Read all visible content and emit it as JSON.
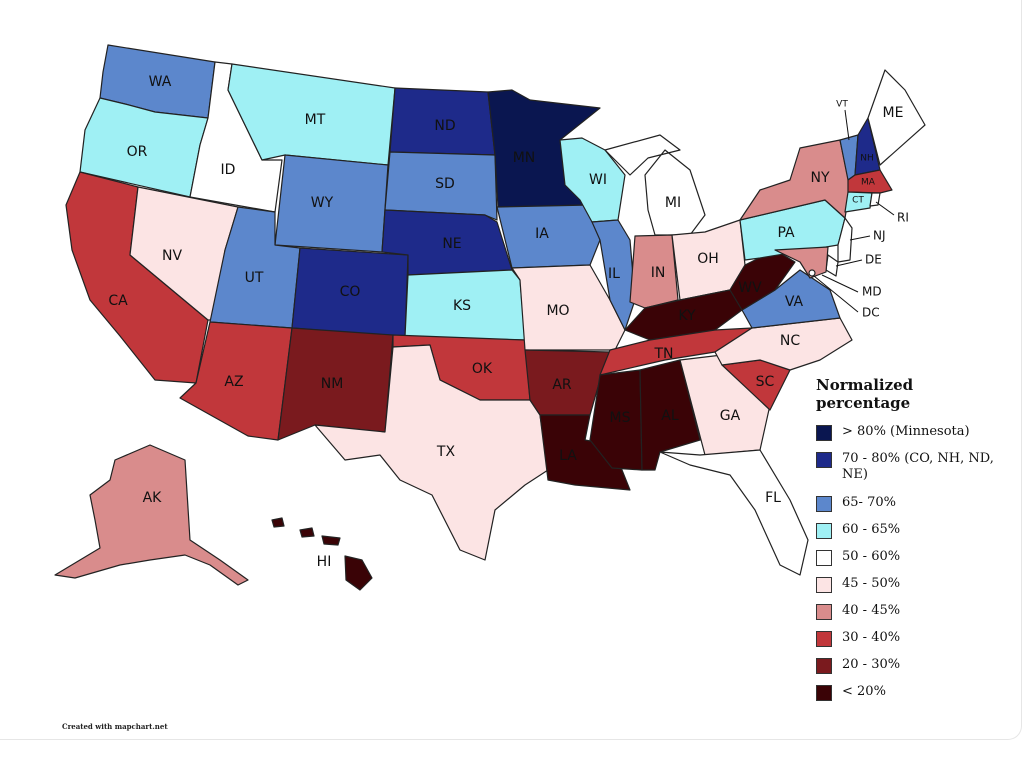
{
  "legend": {
    "title": "Normalized percentage",
    "items": [
      {
        "label": "> 80% (Minnesota)",
        "color": "#0a1650"
      },
      {
        "label": "70 - 80% (CO, NH, ND, NE)",
        "color": "#1e2a8a"
      },
      {
        "label": "65- 70%",
        "color": "#5c87cc"
      },
      {
        "label": "60 - 65%",
        "color": "#9ff0f4"
      },
      {
        "label": "50 - 60%",
        "color": "#ffffff"
      },
      {
        "label": "45 - 50%",
        "color": "#fce4e4"
      },
      {
        "label": "40 - 45%",
        "color": "#d98c8c"
      },
      {
        "label": "30 - 40%",
        "color": "#c1373b"
      },
      {
        "label": "20 - 30%",
        "color": "#7a1a1e"
      },
      {
        "label": "< 20%",
        "color": "#3a0306"
      }
    ]
  },
  "states": {
    "WA": {
      "label": "WA",
      "bin": 2
    },
    "OR": {
      "label": "OR",
      "bin": 3
    },
    "CA": {
      "label": "CA",
      "bin": 7
    },
    "ID": {
      "label": "ID",
      "bin": 4
    },
    "NV": {
      "label": "NV",
      "bin": 5
    },
    "MT": {
      "label": "MT",
      "bin": 3
    },
    "WY": {
      "label": "WY",
      "bin": 2
    },
    "UT": {
      "label": "UT",
      "bin": 2
    },
    "AZ": {
      "label": "AZ",
      "bin": 7
    },
    "CO": {
      "label": "CO",
      "bin": 1
    },
    "NM": {
      "label": "NM",
      "bin": 8
    },
    "ND": {
      "label": "ND",
      "bin": 1
    },
    "SD": {
      "label": "SD",
      "bin": 2
    },
    "NE": {
      "label": "NE",
      "bin": 1
    },
    "KS": {
      "label": "KS",
      "bin": 3
    },
    "OK": {
      "label": "OK",
      "bin": 7
    },
    "TX": {
      "label": "TX",
      "bin": 5
    },
    "MN": {
      "label": "MN",
      "bin": 0
    },
    "IA": {
      "label": "IA",
      "bin": 2
    },
    "MO": {
      "label": "MO",
      "bin": 5
    },
    "AR": {
      "label": "AR",
      "bin": 8
    },
    "LA": {
      "label": "LA",
      "bin": 9
    },
    "WI": {
      "label": "WI",
      "bin": 3
    },
    "IL": {
      "label": "IL",
      "bin": 2
    },
    "MI": {
      "label": "MI",
      "bin": 4
    },
    "IN": {
      "label": "IN",
      "bin": 6
    },
    "OH": {
      "label": "OH",
      "bin": 5
    },
    "KY": {
      "label": "KY",
      "bin": 9
    },
    "TN": {
      "label": "TN",
      "bin": 7
    },
    "MS": {
      "label": "MS",
      "bin": 9
    },
    "AL": {
      "label": "AL",
      "bin": 9
    },
    "GA": {
      "label": "GA",
      "bin": 5
    },
    "FL": {
      "label": "FL",
      "bin": 4
    },
    "SC": {
      "label": "SC",
      "bin": 7
    },
    "NC": {
      "label": "NC",
      "bin": 5
    },
    "VA": {
      "label": "VA",
      "bin": 2
    },
    "WV": {
      "label": "WV",
      "bin": 9
    },
    "PA": {
      "label": "PA",
      "bin": 3
    },
    "NY": {
      "label": "NY",
      "bin": 6
    },
    "VT": {
      "label": "VT",
      "bin": 2
    },
    "NH": {
      "label": "NH",
      "bin": 1
    },
    "ME": {
      "label": "ME",
      "bin": 4
    },
    "MA": {
      "label": "MA",
      "bin": 7
    },
    "CT": {
      "label": "CT",
      "bin": 3
    },
    "RI": {
      "label": "RI",
      "bin": 4
    },
    "NJ": {
      "label": "NJ",
      "bin": 4
    },
    "DE": {
      "label": "DE",
      "bin": 4
    },
    "MD": {
      "label": "MD",
      "bin": 6
    },
    "DC": {
      "label": "DC",
      "bin": 4
    },
    "AK": {
      "label": "AK",
      "bin": 6
    },
    "HI": {
      "label": "HI",
      "bin": 9
    }
  },
  "credit": "Created with mapchart.net"
}
